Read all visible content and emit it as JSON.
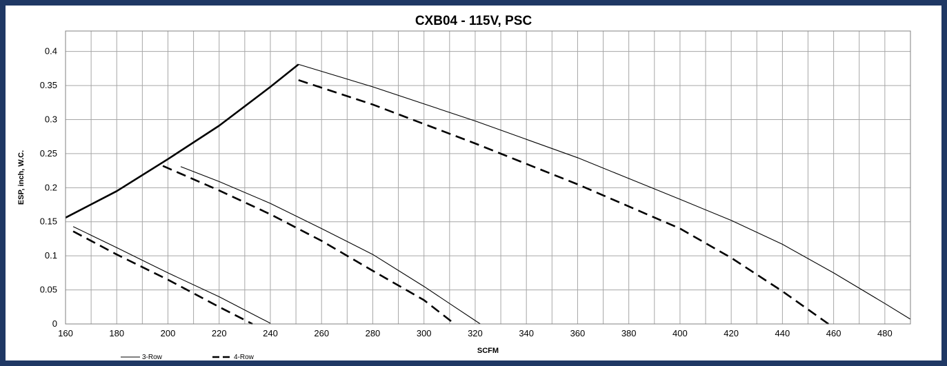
{
  "chart_data": {
    "type": "line",
    "title": "CXB04 - 115V, PSC",
    "xlabel": "SCFM",
    "ylabel": "ESP, inch, W.C.",
    "xlim": [
      160,
      490
    ],
    "ylim": [
      0,
      0.43
    ],
    "x_ticks": [
      160,
      180,
      200,
      220,
      240,
      260,
      280,
      300,
      320,
      340,
      360,
      380,
      400,
      420,
      440,
      460,
      480
    ],
    "x_tick_labels": [
      "160",
      "180",
      "200",
      "220",
      "240",
      "260",
      "280",
      "300",
      "320",
      "340",
      "360",
      "380",
      "400",
      "420",
      "440",
      "460",
      "480"
    ],
    "x_grid_step": 10,
    "y_ticks": [
      0,
      0.05,
      0.1,
      0.15,
      0.2,
      0.25,
      0.3,
      0.35,
      0.4
    ],
    "y_tick_labels": [
      "0",
      "0.05",
      "0.1",
      "0.15",
      "0.2",
      "0.25",
      "0.3",
      "0.35",
      "0.4"
    ],
    "grid": true,
    "legend_position": "bottom-left",
    "legend": [
      {
        "label": "3-Row",
        "style": "solid"
      },
      {
        "label": "4-Row",
        "style": "dashed"
      }
    ],
    "series": [
      {
        "name": "3-Row",
        "style": "solid",
        "width": "thin",
        "points": [
          [
            163,
            0.143
          ],
          [
            180,
            0.112
          ],
          [
            200,
            0.075
          ],
          [
            220,
            0.04
          ],
          [
            240,
            0.001
          ]
        ]
      },
      {
        "name": "4-Row",
        "style": "dashed",
        "width": "thick",
        "points": [
          [
            163,
            0.136
          ],
          [
            180,
            0.102
          ],
          [
            200,
            0.065
          ],
          [
            220,
            0.025
          ],
          [
            233,
            0.0
          ]
        ]
      },
      {
        "name": "3-Row",
        "style": "solid",
        "width": "thin",
        "points": [
          [
            205,
            0.231
          ],
          [
            220,
            0.209
          ],
          [
            240,
            0.177
          ],
          [
            260,
            0.14
          ],
          [
            280,
            0.102
          ],
          [
            300,
            0.055
          ],
          [
            312,
            0.025
          ],
          [
            322,
            0.0
          ]
        ]
      },
      {
        "name": "4-Row",
        "style": "dashed",
        "width": "thick",
        "points": [
          [
            198,
            0.232
          ],
          [
            220,
            0.196
          ],
          [
            240,
            0.161
          ],
          [
            260,
            0.122
          ],
          [
            280,
            0.078
          ],
          [
            300,
            0.035
          ],
          [
            312,
            0.0
          ]
        ]
      },
      {
        "name": "3-Row",
        "style": "solid",
        "width": "thin",
        "points": [
          [
            251,
            0.381
          ],
          [
            280,
            0.348
          ],
          [
            320,
            0.298
          ],
          [
            360,
            0.244
          ],
          [
            400,
            0.183
          ],
          [
            420,
            0.152
          ],
          [
            440,
            0.117
          ],
          [
            460,
            0.075
          ],
          [
            480,
            0.03
          ],
          [
            490,
            0.007
          ]
        ]
      },
      {
        "name": "4-Row",
        "style": "dashed",
        "width": "thick",
        "points": [
          [
            251,
            0.358
          ],
          [
            280,
            0.322
          ],
          [
            320,
            0.265
          ],
          [
            360,
            0.205
          ],
          [
            400,
            0.14
          ],
          [
            420,
            0.097
          ],
          [
            440,
            0.048
          ],
          [
            458,
            0.0
          ]
        ]
      },
      {
        "name": "",
        "style": "solid",
        "width": "thick",
        "points": [
          [
            160,
            0.156
          ],
          [
            180,
            0.195
          ],
          [
            200,
            0.242
          ],
          [
            220,
            0.291
          ],
          [
            240,
            0.348
          ],
          [
            251,
            0.381
          ]
        ]
      }
    ]
  }
}
